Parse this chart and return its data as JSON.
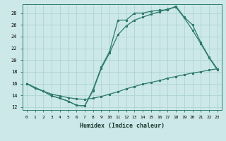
{
  "xlabel": "Humidex (Indice chaleur)",
  "xlim": [
    -0.5,
    23.5
  ],
  "ylim": [
    11.5,
    29.5
  ],
  "xticks": [
    0,
    1,
    2,
    3,
    4,
    5,
    6,
    7,
    8,
    9,
    10,
    11,
    12,
    13,
    14,
    15,
    16,
    17,
    18,
    19,
    20,
    21,
    22,
    23
  ],
  "yticks": [
    12,
    14,
    16,
    18,
    20,
    22,
    24,
    26,
    28
  ],
  "color": "#2d7a6b",
  "bg_color": "#cce8e8",
  "grid_color": "#aad0d0",
  "line1_x": [
    0,
    1,
    2,
    3,
    4,
    5,
    6,
    7,
    8,
    9,
    10,
    11,
    12,
    13,
    14,
    15,
    16,
    17,
    18,
    19,
    20,
    21,
    22,
    23
  ],
  "line1_y": [
    16.0,
    15.2,
    14.7,
    13.9,
    13.5,
    13.0,
    12.3,
    12.2,
    15.0,
    18.8,
    21.5,
    26.8,
    26.8,
    28.0,
    28.0,
    28.3,
    28.5,
    28.5,
    29.2,
    27.3,
    26.0,
    23.0,
    20.5,
    18.5
  ],
  "line2_x": [
    0,
    1,
    2,
    3,
    4,
    5,
    6,
    7,
    8,
    9,
    10,
    11,
    12,
    13,
    14,
    15,
    16,
    17,
    18,
    19,
    20,
    21,
    22,
    23
  ],
  "line2_y": [
    16.0,
    15.2,
    14.7,
    13.9,
    13.5,
    13.0,
    12.3,
    12.2,
    14.8,
    18.6,
    21.2,
    24.3,
    25.8,
    26.8,
    27.3,
    27.8,
    28.2,
    28.7,
    29.0,
    27.2,
    25.1,
    22.8,
    20.4,
    18.3
  ],
  "line3_x": [
    0,
    2,
    3,
    4,
    5,
    6,
    7,
    8,
    9,
    10,
    11,
    12,
    13,
    14,
    15,
    16,
    17,
    18,
    19,
    20,
    21,
    22,
    23
  ],
  "line3_y": [
    16.0,
    14.7,
    14.2,
    13.9,
    13.6,
    13.4,
    13.3,
    13.5,
    13.8,
    14.2,
    14.6,
    15.1,
    15.5,
    15.9,
    16.2,
    16.5,
    16.9,
    17.2,
    17.5,
    17.8,
    18.0,
    18.3,
    18.5
  ]
}
